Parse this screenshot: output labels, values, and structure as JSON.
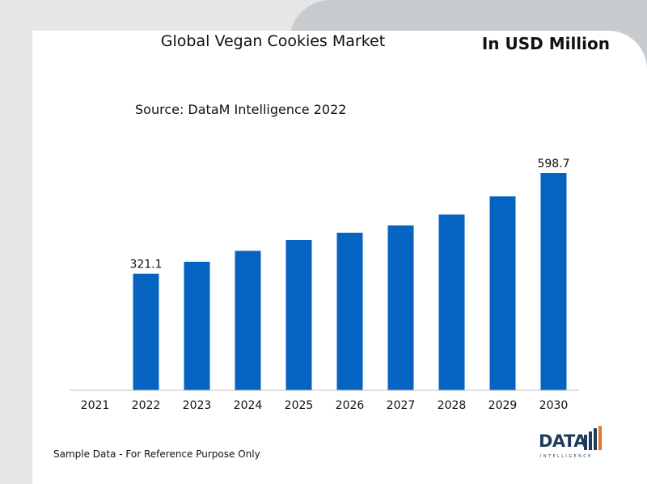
{
  "header": {
    "title": "Global Vegan Cookies Market",
    "unit": "In USD Million",
    "source": "Source: DataM Intelligence 2022"
  },
  "footer": {
    "note": "Sample Data - For Reference Purpose Only",
    "logo_text": "DATA",
    "logo_subtext": "INTELLIGENCE"
  },
  "colors": {
    "bar": "#0563c1",
    "background": "#e6e6e6",
    "panel": "#ffffff",
    "tab": "#c8cbce",
    "logo_accent": "#e87722",
    "logo_dark": "#1f3b5c"
  },
  "chart_data": {
    "type": "bar",
    "title": "Global Vegan Cookies Market",
    "xlabel": "",
    "ylabel": "",
    "categories": [
      "2021",
      "2022",
      "2023",
      "2024",
      "2025",
      "2026",
      "2027",
      "2028",
      "2029",
      "2030"
    ],
    "series": [
      {
        "values": [
          null,
          321.1,
          354,
          384,
          414,
          434,
          454,
          484,
          534,
          598.7
        ]
      }
    ],
    "data_labels": [
      {
        "category": "2022",
        "text": "321.1"
      },
      {
        "category": "2030",
        "text": "598.7"
      }
    ],
    "ylim": [
      0,
      598.7
    ],
    "grid": false,
    "legend": "none"
  }
}
